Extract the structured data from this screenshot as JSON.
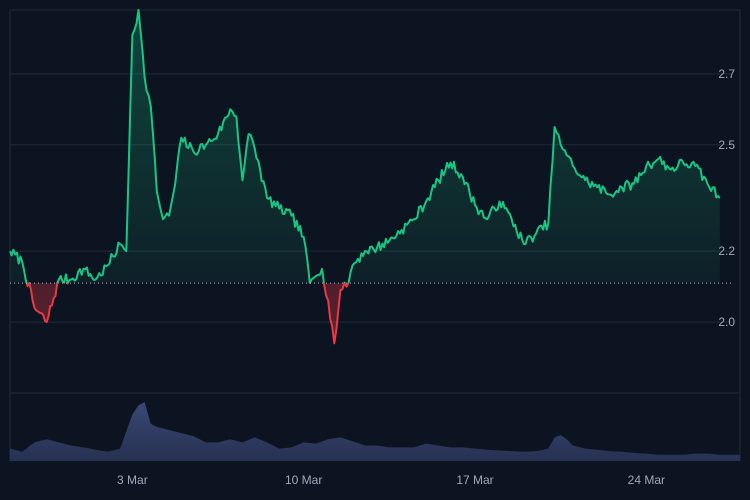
{
  "chart_data": {
    "type": "area",
    "title": "",
    "xlabel": "",
    "ylabel": "",
    "x_ticks": [
      "3 Mar",
      "10 Mar",
      "17 Mar",
      "24 Mar"
    ],
    "y_ticks": [
      "2.0",
      "2.2",
      "2.5",
      "2.7"
    ],
    "baseline": 2.11,
    "ylim": [
      1.8,
      2.88
    ],
    "grid": true,
    "colors": {
      "above_baseline": "#16c784",
      "below_baseline": "#ea3943",
      "volume": "#3d4b7a",
      "background": "#0d1421",
      "grid": "#222a3a"
    },
    "price_series": {
      "name": "",
      "points": [
        [
          "27 Feb 00:00",
          2.2
        ],
        [
          "27 Feb 12:00",
          2.17
        ],
        [
          "28 Feb 00:00",
          2.04
        ],
        [
          "28 Feb 12:00",
          2.0
        ],
        [
          "29 Feb 00:00",
          2.12
        ],
        [
          "29 Feb 12:00",
          2.12
        ],
        [
          "1 Mar 00:00",
          2.15
        ],
        [
          "1 Mar 12:00",
          2.12
        ],
        [
          "2 Mar 00:00",
          2.16
        ],
        [
          "2 Mar 12:00",
          2.22
        ],
        [
          "2 Mar 18:00",
          2.2
        ],
        [
          "3 Mar 00:00",
          2.81
        ],
        [
          "3 Mar 06:00",
          2.88
        ],
        [
          "3 Mar 12:00",
          2.69
        ],
        [
          "3 Mar 18:00",
          2.61
        ],
        [
          "4 Mar 00:00",
          2.37
        ],
        [
          "4 Mar 06:00",
          2.29
        ],
        [
          "4 Mar 12:00",
          2.3
        ],
        [
          "4 Mar 18:00",
          2.39
        ],
        [
          "5 Mar 00:00",
          2.52
        ],
        [
          "5 Mar 12:00",
          2.48
        ],
        [
          "6 Mar 00:00",
          2.5
        ],
        [
          "6 Mar 12:00",
          2.53
        ],
        [
          "7 Mar 00:00",
          2.6
        ],
        [
          "7 Mar 06:00",
          2.58
        ],
        [
          "7 Mar 12:00",
          2.4
        ],
        [
          "7 Mar 18:00",
          2.53
        ],
        [
          "8 Mar 00:00",
          2.49
        ],
        [
          "8 Mar 12:00",
          2.35
        ],
        [
          "9 Mar 00:00",
          2.32
        ],
        [
          "9 Mar 12:00",
          2.3
        ],
        [
          "10 Mar 00:00",
          2.24
        ],
        [
          "10 Mar 06:00",
          2.11
        ],
        [
          "10 Mar 12:00",
          2.13
        ],
        [
          "10 Mar 18:00",
          2.15
        ],
        [
          "11 Mar 00:00",
          2.06
        ],
        [
          "11 Mar 06:00",
          1.94
        ],
        [
          "11 Mar 12:00",
          2.09
        ],
        [
          "11 Mar 18:00",
          2.1
        ],
        [
          "12 Mar 00:00",
          2.16
        ],
        [
          "12 Mar 12:00",
          2.2
        ],
        [
          "13 Mar 00:00",
          2.21
        ],
        [
          "13 Mar 12:00",
          2.23
        ],
        [
          "14 Mar 00:00",
          2.26
        ],
        [
          "14 Mar 12:00",
          2.29
        ],
        [
          "15 Mar 00:00",
          2.34
        ],
        [
          "15 Mar 12:00",
          2.4
        ],
        [
          "16 Mar 00:00",
          2.45
        ],
        [
          "16 Mar 12:00",
          2.41
        ],
        [
          "17 Mar 00:00",
          2.33
        ],
        [
          "17 Mar 12:00",
          2.29
        ],
        [
          "18 Mar 00:00",
          2.34
        ],
        [
          "18 Mar 12:00",
          2.29
        ],
        [
          "19 Mar 00:00",
          2.22
        ],
        [
          "19 Mar 12:00",
          2.25
        ],
        [
          "20 Mar 00:00",
          2.28
        ],
        [
          "20 Mar 06:00",
          2.55
        ],
        [
          "20 Mar 12:00",
          2.5
        ],
        [
          "20 Mar 18:00",
          2.47
        ],
        [
          "21 Mar 00:00",
          2.44
        ],
        [
          "21 Mar 12:00",
          2.4
        ],
        [
          "22 Mar 00:00",
          2.38
        ],
        [
          "22 Mar 12:00",
          2.36
        ],
        [
          "23 Mar 00:00",
          2.38
        ],
        [
          "23 Mar 12:00",
          2.39
        ],
        [
          "24 Mar 00:00",
          2.44
        ],
        [
          "24 Mar 12:00",
          2.46
        ],
        [
          "25 Mar 00:00",
          2.43
        ],
        [
          "25 Mar 12:00",
          2.45
        ],
        [
          "26 Mar 00:00",
          2.44
        ],
        [
          "26 Mar 12:00",
          2.39
        ],
        [
          "27 Mar 00:00",
          2.35
        ]
      ]
    },
    "volume_series": {
      "name": "",
      "points": [
        [
          "27 Feb 00:00",
          0.2
        ],
        [
          "27 Feb 12:00",
          0.15
        ],
        [
          "28 Feb 00:00",
          0.3
        ],
        [
          "28 Feb 12:00",
          0.35
        ],
        [
          "29 Feb 00:00",
          0.3
        ],
        [
          "29 Feb 12:00",
          0.25
        ],
        [
          "1 Mar 00:00",
          0.22
        ],
        [
          "1 Mar 12:00",
          0.18
        ],
        [
          "2 Mar 00:00",
          0.15
        ],
        [
          "2 Mar 12:00",
          0.2
        ],
        [
          "3 Mar 00:00",
          0.75
        ],
        [
          "3 Mar 06:00",
          0.9
        ],
        [
          "3 Mar 12:00",
          0.95
        ],
        [
          "3 Mar 18:00",
          0.6
        ],
        [
          "4 Mar 00:00",
          0.55
        ],
        [
          "4 Mar 12:00",
          0.5
        ],
        [
          "5 Mar 00:00",
          0.45
        ],
        [
          "5 Mar 12:00",
          0.4
        ],
        [
          "6 Mar 00:00",
          0.3
        ],
        [
          "6 Mar 12:00",
          0.3
        ],
        [
          "7 Mar 00:00",
          0.35
        ],
        [
          "7 Mar 12:00",
          0.3
        ],
        [
          "8 Mar 00:00",
          0.38
        ],
        [
          "8 Mar 12:00",
          0.3
        ],
        [
          "9 Mar 00:00",
          0.2
        ],
        [
          "9 Mar 12:00",
          0.22
        ],
        [
          "10 Mar 00:00",
          0.3
        ],
        [
          "10 Mar 12:00",
          0.28
        ],
        [
          "11 Mar 00:00",
          0.35
        ],
        [
          "11 Mar 12:00",
          0.38
        ],
        [
          "12 Mar 00:00",
          0.32
        ],
        [
          "12 Mar 12:00",
          0.25
        ],
        [
          "13 Mar 00:00",
          0.25
        ],
        [
          "13 Mar 12:00",
          0.22
        ],
        [
          "14 Mar 00:00",
          0.22
        ],
        [
          "14 Mar 12:00",
          0.22
        ],
        [
          "15 Mar 00:00",
          0.28
        ],
        [
          "15 Mar 12:00",
          0.25
        ],
        [
          "16 Mar 00:00",
          0.22
        ],
        [
          "16 Mar 12:00",
          0.22
        ],
        [
          "17 Mar 00:00",
          0.2
        ],
        [
          "17 Mar 12:00",
          0.18
        ],
        [
          "18 Mar 00:00",
          0.17
        ],
        [
          "18 Mar 12:00",
          0.16
        ],
        [
          "19 Mar 00:00",
          0.15
        ],
        [
          "19 Mar 12:00",
          0.16
        ],
        [
          "20 Mar 00:00",
          0.2
        ],
        [
          "20 Mar 06:00",
          0.38
        ],
        [
          "20 Mar 12:00",
          0.42
        ],
        [
          "20 Mar 18:00",
          0.35
        ],
        [
          "21 Mar 00:00",
          0.25
        ],
        [
          "21 Mar 12:00",
          0.2
        ],
        [
          "22 Mar 00:00",
          0.18
        ],
        [
          "22 Mar 12:00",
          0.16
        ],
        [
          "23 Mar 00:00",
          0.15
        ],
        [
          "23 Mar 12:00",
          0.13
        ],
        [
          "24 Mar 00:00",
          0.12
        ],
        [
          "24 Mar 12:00",
          0.1
        ],
        [
          "25 Mar 00:00",
          0.1
        ],
        [
          "25 Mar 12:00",
          0.1
        ],
        [
          "26 Mar 00:00",
          0.12
        ],
        [
          "26 Mar 12:00",
          0.12
        ],
        [
          "27 Mar 00:00",
          0.1
        ]
      ]
    }
  }
}
